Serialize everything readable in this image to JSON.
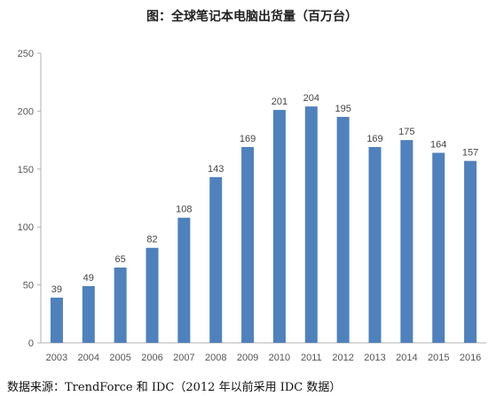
{
  "chart_data": {
    "type": "bar",
    "title": "图：全球笔记本电脑出货量（百万台）",
    "categories": [
      "2003",
      "2004",
      "2005",
      "2006",
      "2007",
      "2008",
      "2009",
      "2010",
      "2011",
      "2012",
      "2013",
      "2014",
      "2015",
      "2016"
    ],
    "values": [
      39,
      49,
      65,
      82,
      108,
      143,
      169,
      201,
      204,
      195,
      169,
      175,
      164,
      157
    ],
    "ylim": [
      0,
      250
    ],
    "yticks": [
      0,
      50,
      100,
      150,
      200,
      250
    ],
    "xlabel": "",
    "ylabel": "",
    "grid": false,
    "bar_color": "#4f81bd"
  },
  "source": "数据来源：TrendForce 和 IDC（2012 年以前采用 IDC 数据）"
}
